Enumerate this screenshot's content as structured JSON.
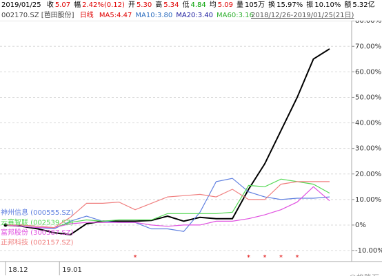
{
  "header": {
    "date": "2019/01/25",
    "quotes": [
      {
        "label": "收",
        "value": "5.07",
        "color": "#e00000"
      },
      {
        "label": "幅",
        "value": "2.42%(0.12)",
        "color": "#e00000"
      },
      {
        "label": "开",
        "value": "5.30",
        "color": "#e00000"
      },
      {
        "label": "高",
        "value": "5.34",
        "color": "#e00000"
      },
      {
        "label": "低",
        "value": "4.84",
        "color": "#00a000"
      },
      {
        "label": "均",
        "value": "5.09",
        "color": "#e00000"
      },
      {
        "label": "量",
        "value": "105万",
        "color": "#000000"
      },
      {
        "label": "换",
        "value": "15.97%",
        "color": "#000000"
      },
      {
        "label": "振",
        "value": "10.10%",
        "color": "#000000"
      },
      {
        "label": "额",
        "value": "5.32亿",
        "color": "#000000"
      }
    ],
    "code": "002170.SZ [芭田股份]",
    "period": {
      "text": "日线",
      "color": "#e00000"
    },
    "ma": [
      {
        "text": "MA5:4.47",
        "color": "#e00000"
      },
      {
        "text": "MA10:3.80",
        "color": "#3070c0"
      },
      {
        "text": "MA20:3.40",
        "color": "#2020a0"
      },
      {
        "text": "MA60:3.16",
        "color": "#30b030"
      }
    ],
    "range": "2018/12/26-2019/01/25(21日)"
  },
  "chart_data": {
    "type": "line",
    "categories": [
      "18.12",
      null,
      null,
      null,
      "19.01",
      null,
      null,
      null,
      null,
      null,
      null,
      null,
      null,
      null,
      null,
      null,
      null,
      null,
      null,
      null,
      null
    ],
    "ylim": [
      -14.3,
      82.2
    ],
    "yticks": [
      {
        "value": -10,
        "label": "-10.00%"
      },
      {
        "value": 0,
        "label": "0%"
      },
      {
        "value": 10,
        "label": "10.00%"
      },
      {
        "value": 20,
        "label": "20.00%"
      },
      {
        "value": 30,
        "label": "30.00%"
      },
      {
        "value": 40,
        "label": "40.00%"
      },
      {
        "value": 50,
        "label": "50.00%"
      },
      {
        "value": 60,
        "label": "60.00%"
      },
      {
        "value": 70,
        "label": "70.00%"
      },
      {
        "value": 80,
        "label": "80.00%"
      }
    ],
    "grid": true,
    "series": [
      {
        "color": "#000000",
        "values": [
          0,
          -0.5,
          -1.5,
          -3,
          -3.8,
          0.5,
          1.5,
          1.5,
          1.5,
          1.8,
          3.5,
          1.5,
          3,
          2.5,
          2.5,
          14,
          24,
          37,
          50,
          65,
          69
        ]
      },
      {
        "name": "神州信息 (000555.SZ)",
        "color": "#6080e0",
        "values": [
          0,
          -0.5,
          -1,
          -1.5,
          1.5,
          3.5,
          1.5,
          1,
          1,
          -1.5,
          -1.5,
          -2.5,
          5,
          17,
          18.3,
          13,
          11,
          10,
          10.5,
          10.5,
          11
        ]
      },
      {
        "name": "云赛智联 (002539.SZ)",
        "color": "#55d855",
        "values": [
          0,
          0,
          -0.5,
          -1,
          1,
          2,
          1.5,
          2,
          2,
          2,
          4.5,
          4.5,
          4.5,
          4.5,
          5,
          15.5,
          15,
          18,
          17,
          16,
          12.5
        ]
      },
      {
        "name": "富邦股份 (300387.SZ)",
        "color": "#e050e0",
        "values": [
          0,
          -0.5,
          -1,
          -1,
          0.5,
          1,
          1,
          1,
          1,
          0,
          -0.5,
          0,
          0,
          1.5,
          1.5,
          2.5,
          4,
          6,
          9,
          15,
          9.5
        ]
      },
      {
        "name": "正邦科技 (002157.SZ)",
        "color": "#f08080",
        "values": [
          0,
          0,
          -0.5,
          -1,
          3,
          8.5,
          8.5,
          9,
          6,
          8.5,
          11,
          11.5,
          12,
          11,
          14,
          10,
          10,
          16,
          17,
          17,
          17
        ]
      }
    ],
    "event_markers": [
      {
        "index": 8,
        "label": "*"
      },
      {
        "index": 15,
        "label": "*"
      },
      {
        "index": 16,
        "label": "*"
      },
      {
        "index": 17,
        "label": "*"
      },
      {
        "index": 18,
        "label": "*"
      }
    ],
    "watermark": "@格隆汇"
  }
}
